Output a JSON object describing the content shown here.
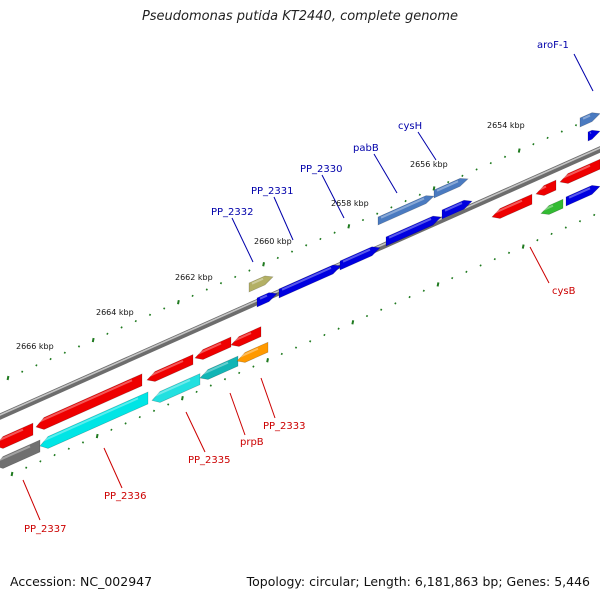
{
  "title": "Pseudomonas putida KT2440, complete genome",
  "footer": {
    "accession": "Accession: NC_002947",
    "topology": "Topology: circular; Length: 6,181,863 bp; Genes: 5,446"
  },
  "colors": {
    "backbone": "#8c8c8c",
    "tick": "#1f7a1f",
    "forward_label": "#0000aa",
    "reverse_label": "#cc0000"
  },
  "tick_labels": [
    {
      "text": "2654 kbp"
    },
    {
      "text": "2656 kbp"
    },
    {
      "text": "2658 kbp"
    },
    {
      "text": "2660 kbp"
    },
    {
      "text": "2662 kbp"
    },
    {
      "text": "2664 kbp"
    },
    {
      "text": "2666 kbp"
    }
  ],
  "gene_labels": {
    "forward": [
      "aroF-1",
      "cysH",
      "pabB",
      "PP_2330",
      "PP_2331",
      "PP_2332"
    ],
    "reverse": [
      "cysB",
      "PP_2333",
      "prpB",
      "PP_2335",
      "PP_2336",
      "PP_2337"
    ]
  }
}
